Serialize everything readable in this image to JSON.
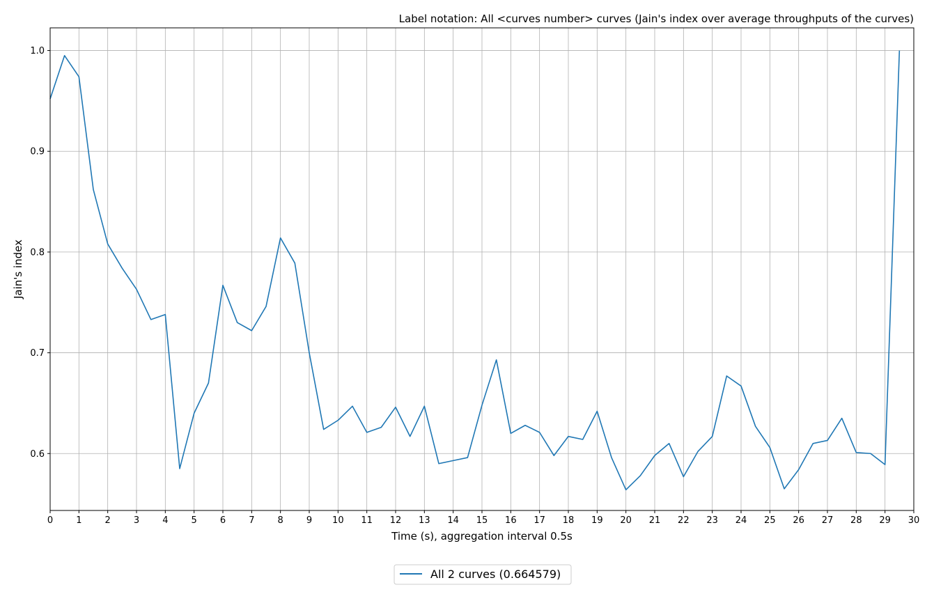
{
  "chart_data": {
    "type": "line",
    "title": "Label notation: All <curves number> curves (Jain's index over average throughputs of the curves)",
    "xlabel": "Time (s), aggregation interval 0.5s",
    "ylabel": "Jain's index",
    "xlim": [
      0,
      30
    ],
    "ylim": [
      0.5435,
      1.0225
    ],
    "x_ticks": [
      0,
      1,
      2,
      3,
      4,
      5,
      6,
      7,
      8,
      9,
      10,
      11,
      12,
      13,
      14,
      15,
      16,
      17,
      18,
      19,
      20,
      21,
      22,
      23,
      24,
      25,
      26,
      27,
      28,
      29,
      30
    ],
    "x_tick_labels": [
      "0",
      "1",
      "2",
      "3",
      "4",
      "5",
      "6",
      "7",
      "8",
      "9",
      "10",
      "11",
      "12",
      "13",
      "14",
      "15",
      "16",
      "17",
      "18",
      "19",
      "20",
      "21",
      "22",
      "23",
      "24",
      "25",
      "26",
      "27",
      "28",
      "29",
      "30"
    ],
    "y_ticks": [
      0.6,
      0.7,
      0.8,
      0.9,
      1.0
    ],
    "y_tick_labels": [
      "0.6",
      "0.7",
      "0.8",
      "0.9",
      "1.0"
    ],
    "grid": true,
    "legend_position": "below plot, centered",
    "x": [
      0,
      0.5,
      1,
      1.5,
      2,
      2.5,
      3,
      3.5,
      4,
      4.5,
      5,
      5.5,
      6,
      6.5,
      7,
      7.5,
      8,
      8.5,
      9,
      9.5,
      10,
      10.5,
      11,
      11.5,
      12,
      12.5,
      13,
      13.5,
      14,
      14.5,
      15,
      15.5,
      16,
      16.5,
      17,
      17.5,
      18,
      18.5,
      19,
      19.5,
      20,
      20.5,
      21,
      21.5,
      22,
      22.5,
      23,
      23.5,
      24,
      24.5,
      25,
      25.5,
      26,
      26.5,
      27,
      27.5,
      28,
      28.5,
      29,
      29.5
    ],
    "series": [
      {
        "name": "All 2 curves (0.664579)",
        "color": "#1f77b4",
        "values": [
          0.952,
          0.995,
          0.974,
          0.862,
          0.808,
          0.784,
          0.763,
          0.733,
          0.738,
          0.585,
          0.64,
          0.67,
          0.767,
          0.73,
          0.722,
          0.746,
          0.814,
          0.789,
          0.7,
          0.624,
          0.633,
          0.647,
          0.621,
          0.626,
          0.646,
          0.617,
          0.647,
          0.59,
          0.593,
          0.596,
          0.648,
          0.693,
          0.62,
          0.628,
          0.621,
          0.598,
          0.617,
          0.614,
          0.642,
          0.596,
          0.564,
          0.578,
          0.598,
          0.61,
          0.577,
          0.602,
          0.617,
          0.677,
          0.667,
          0.627,
          0.606,
          0.565,
          0.584,
          0.61,
          0.613,
          0.635,
          0.601,
          0.6,
          0.589,
          1.0
        ]
      }
    ]
  }
}
